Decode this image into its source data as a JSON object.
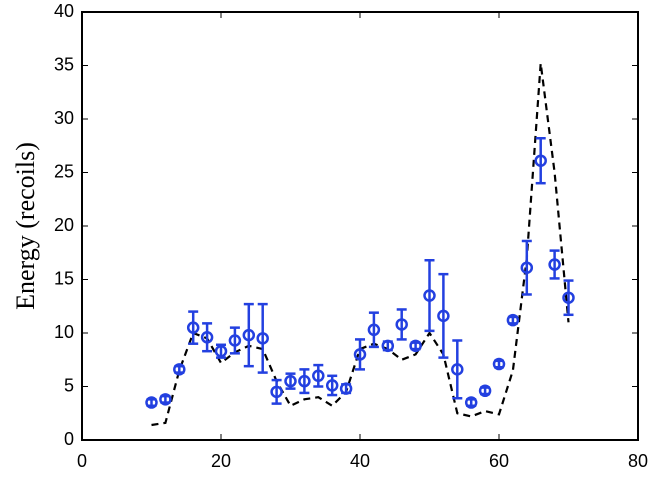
{
  "chart_data": {
    "type": "scatter",
    "ylabel": "Energy (recoils)",
    "x": [
      10,
      12,
      14,
      16,
      18,
      20,
      22,
      24,
      26,
      28,
      30,
      32,
      34,
      36,
      38,
      40,
      42,
      44,
      46,
      48,
      50,
      52,
      54,
      56,
      58,
      60,
      62,
      64,
      66,
      68,
      70
    ],
    "series": [
      {
        "kind": "errorbar",
        "color": "#2340e0",
        "marker": "circle",
        "values": [
          3.5,
          3.8,
          6.6,
          10.5,
          9.6,
          8.3,
          9.3,
          9.8,
          9.5,
          4.5,
          5.5,
          5.5,
          6.0,
          5.1,
          4.8,
          8.0,
          10.3,
          8.8,
          10.8,
          8.8,
          13.5,
          11.6,
          6.6,
          3.5,
          4.6,
          7.1,
          11.2,
          16.1,
          26.1,
          16.4,
          13.3
        ],
        "errors": [
          0.3,
          0.3,
          0.3,
          1.5,
          1.3,
          0.6,
          1.2,
          2.9,
          3.2,
          1.1,
          0.7,
          1.1,
          1.0,
          0.9,
          0.4,
          1.4,
          1.6,
          0.4,
          1.4,
          0.3,
          3.3,
          3.9,
          2.7,
          0.3,
          0.3,
          0.3,
          0.3,
          2.5,
          2.1,
          1.3,
          1.6
        ]
      },
      {
        "kind": "line",
        "color": "#000000",
        "linestyle": "dashed",
        "values": [
          1.4,
          1.6,
          6.5,
          10.0,
          9.5,
          7.2,
          8.2,
          8.8,
          8.5,
          5.5,
          3.2,
          3.8,
          4.0,
          3.2,
          4.5,
          8.5,
          9.0,
          8.5,
          7.5,
          8.0,
          10.0,
          8.0,
          2.5,
          2.2,
          2.7,
          2.4,
          6.5,
          17.0,
          35.2,
          25.0,
          11.0
        ]
      }
    ],
    "xlim": [
      0,
      80
    ],
    "xticks": [
      0,
      20,
      40,
      60,
      80
    ],
    "ylim": [
      0,
      40
    ],
    "yticks": [
      0,
      5,
      10,
      15,
      20,
      25,
      30,
      35,
      40
    ],
    "grid": false
  }
}
